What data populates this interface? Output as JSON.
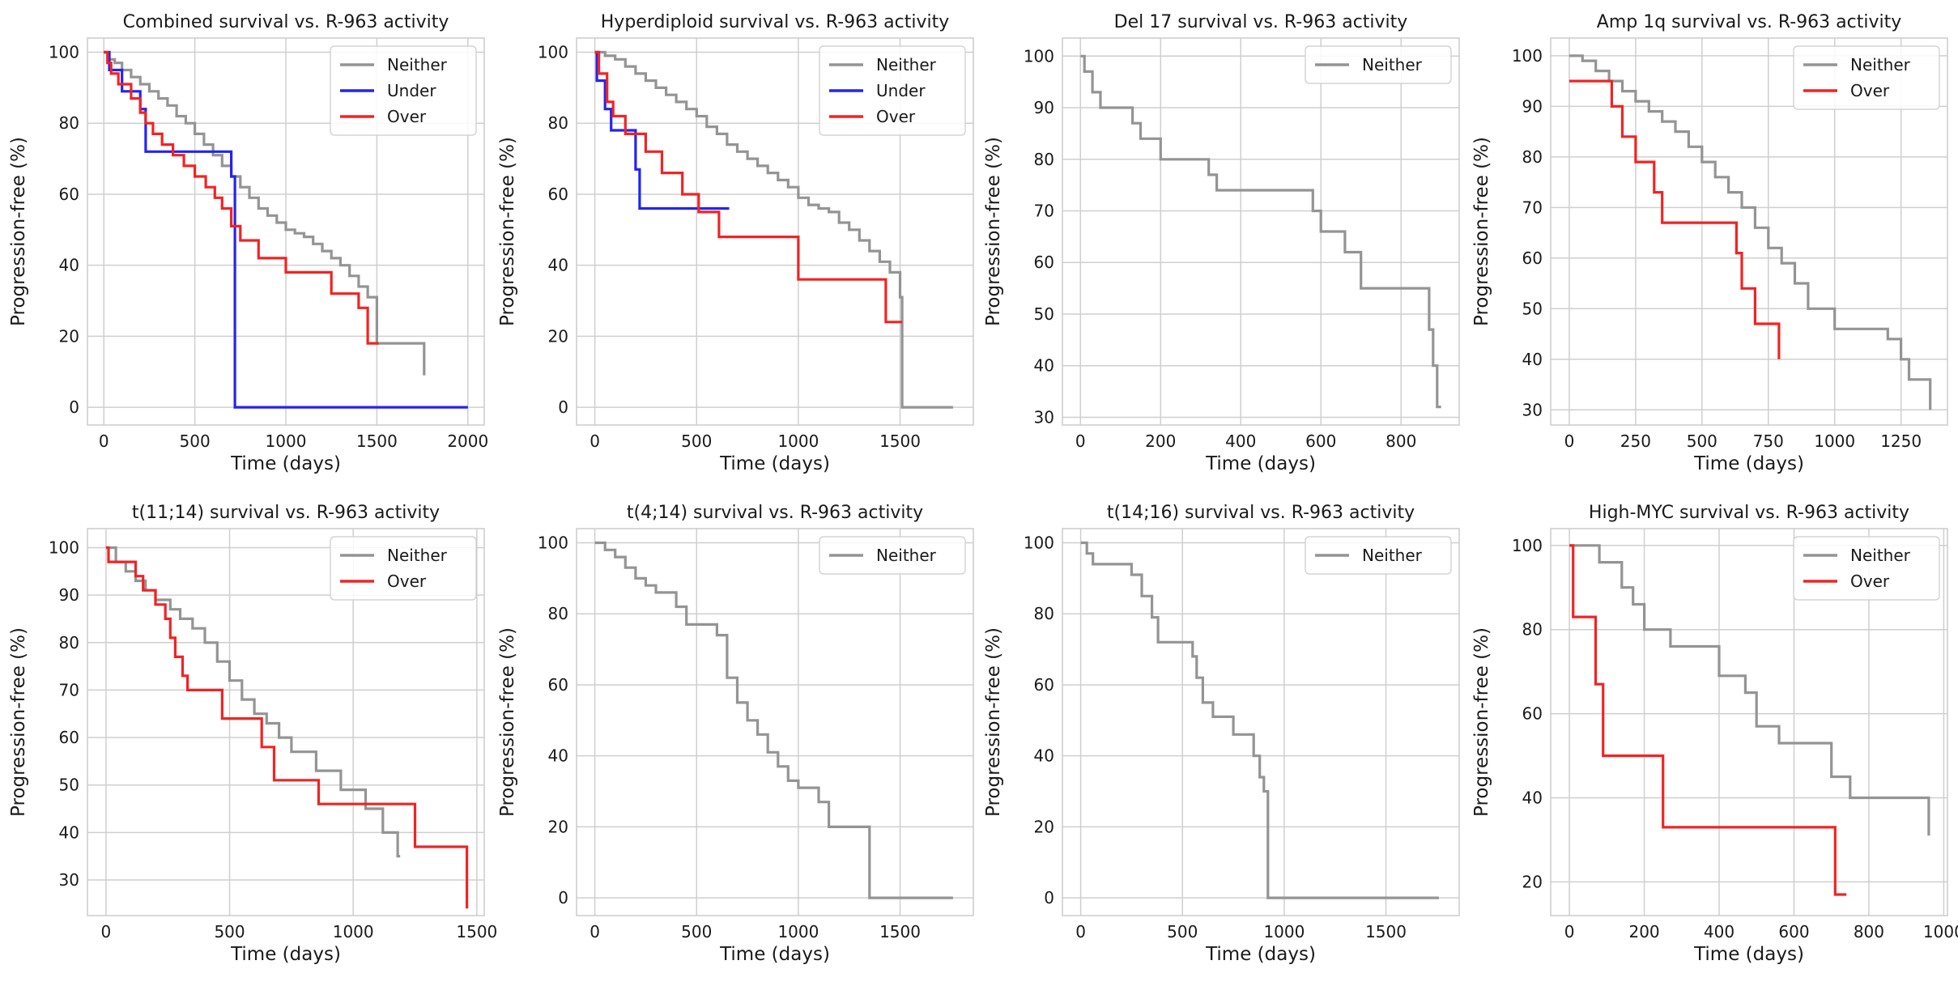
{
  "colors": {
    "Neither": "#949494",
    "Under": "#2424f0",
    "Over": "#f02424"
  },
  "chart_data": [
    {
      "type": "line",
      "title": "Combined survival vs. R-963 activity",
      "xlabel": "Time (days)",
      "ylabel": "Progression-free (%)",
      "xlim": [
        -90,
        2090
      ],
      "ylim": [
        -5,
        104
      ],
      "xticks": [
        0,
        500,
        1000,
        1500,
        2000
      ],
      "yticks": [
        0,
        20,
        40,
        60,
        80,
        100
      ],
      "legend": "top-right",
      "series": [
        {
          "name": "Neither",
          "x": [
            0,
            30,
            60,
            100,
            150,
            200,
            250,
            300,
            350,
            400,
            450,
            500,
            550,
            600,
            650,
            700,
            750,
            800,
            850,
            900,
            950,
            1000,
            1050,
            1100,
            1150,
            1200,
            1250,
            1300,
            1350,
            1400,
            1450,
            1500,
            1550,
            1750,
            1760
          ],
          "y": [
            100,
            98,
            97,
            95,
            93,
            91,
            89,
            87,
            85,
            82,
            80,
            77,
            74,
            71,
            68,
            65,
            62,
            59,
            56,
            54,
            52,
            50,
            49,
            48,
            46,
            44,
            42,
            40,
            37,
            34,
            31,
            18,
            18,
            18,
            9
          ]
        },
        {
          "name": "Under",
          "x": [
            0,
            30,
            100,
            200,
            230,
            700,
            720,
            2000
          ],
          "y": [
            100,
            95,
            89,
            84,
            72,
            65,
            0,
            0
          ]
        },
        {
          "name": "Over",
          "x": [
            0,
            20,
            40,
            80,
            150,
            200,
            230,
            270,
            320,
            380,
            440,
            500,
            560,
            610,
            650,
            700,
            750,
            850,
            1000,
            1250,
            1400,
            1450,
            1510
          ],
          "y": [
            100,
            97,
            94,
            91,
            87,
            83,
            80,
            77,
            74,
            71,
            68,
            65,
            62,
            59,
            56,
            51,
            47,
            42,
            38,
            32,
            28,
            18,
            18
          ]
        }
      ]
    },
    {
      "type": "line",
      "title": "Hyperdiploid survival vs. R-963 activity",
      "xlabel": "Time (days)",
      "ylabel": "Progression-free (%)",
      "xlim": [
        -90,
        1860
      ],
      "ylim": [
        -5,
        104
      ],
      "xticks": [
        0,
        500,
        1000,
        1500
      ],
      "yticks": [
        0,
        20,
        40,
        60,
        80,
        100
      ],
      "legend": "top-right",
      "series": [
        {
          "name": "Neither",
          "x": [
            0,
            50,
            100,
            150,
            200,
            250,
            300,
            350,
            400,
            450,
            500,
            550,
            600,
            650,
            700,
            750,
            800,
            850,
            900,
            950,
            1000,
            1050,
            1100,
            1150,
            1200,
            1250,
            1300,
            1350,
            1400,
            1450,
            1500,
            1510,
            1760
          ],
          "y": [
            100,
            99,
            98,
            96,
            94,
            92,
            90,
            88,
            86,
            84,
            82,
            79,
            77,
            74,
            72,
            70,
            68,
            66,
            64,
            62,
            59,
            57,
            56,
            55,
            52,
            50,
            47,
            44,
            41,
            38,
            31,
            0,
            0
          ]
        },
        {
          "name": "Under",
          "x": [
            0,
            10,
            50,
            80,
            200,
            220,
            240,
            660
          ],
          "y": [
            100,
            92,
            84,
            78,
            67,
            56,
            56,
            56
          ]
        },
        {
          "name": "Over",
          "x": [
            0,
            20,
            60,
            90,
            150,
            250,
            330,
            430,
            510,
            610,
            1000,
            1430,
            1510
          ],
          "y": [
            100,
            94,
            86,
            82,
            77,
            72,
            66,
            60,
            55,
            48,
            36,
            24,
            24
          ]
        }
      ]
    },
    {
      "type": "line",
      "title": "Del 17 survival vs. R-963 activity",
      "xlabel": "Time (days)",
      "ylabel": "Progression-free (%)",
      "xlim": [
        -45,
        945
      ],
      "ylim": [
        28.5,
        103.5
      ],
      "xticks": [
        0,
        200,
        400,
        600,
        800
      ],
      "yticks": [
        30,
        40,
        50,
        60,
        70,
        80,
        90,
        100
      ],
      "legend": "top-right",
      "series": [
        {
          "name": "Neither",
          "x": [
            0,
            10,
            30,
            50,
            130,
            150,
            200,
            320,
            340,
            580,
            600,
            660,
            700,
            870,
            880,
            890,
            900
          ],
          "y": [
            100,
            97,
            93,
            90,
            87,
            84,
            80,
            77,
            74,
            70,
            66,
            62,
            55,
            47,
            40,
            32,
            32
          ]
        }
      ]
    },
    {
      "type": "line",
      "title": "Amp 1q survival vs. R-963 activity",
      "xlabel": "Time (days)",
      "ylabel": "Progression-free (%)",
      "xlim": [
        -70,
        1425
      ],
      "ylim": [
        27,
        103.5
      ],
      "xticks": [
        0,
        250,
        500,
        750,
        1000,
        1250
      ],
      "yticks": [
        30,
        40,
        50,
        60,
        70,
        80,
        90,
        100
      ],
      "legend": "top-right",
      "series": [
        {
          "name": "Neither",
          "x": [
            0,
            50,
            100,
            150,
            200,
            250,
            300,
            350,
            400,
            450,
            500,
            550,
            600,
            650,
            700,
            750,
            800,
            850,
            900,
            1000,
            1200,
            1250,
            1280,
            1360
          ],
          "y": [
            100,
            99,
            97,
            95,
            93,
            91,
            89,
            87,
            85,
            82,
            79,
            76,
            73,
            70,
            66,
            62,
            59,
            55,
            50,
            46,
            44,
            40,
            36,
            30
          ]
        },
        {
          "name": "Over",
          "x": [
            0,
            160,
            200,
            250,
            320,
            350,
            630,
            650,
            700,
            790
          ],
          "y": [
            95,
            90,
            84,
            79,
            73,
            67,
            61,
            54,
            47,
            40
          ]
        }
      ]
    },
    {
      "type": "line",
      "title": "t(11;14) survival vs. R-963 activity",
      "xlabel": "Time (days)",
      "ylabel": "Progression-free (%)",
      "xlim": [
        -75,
        1530
      ],
      "ylim": [
        22.5,
        104
      ],
      "xticks": [
        0,
        500,
        1000,
        1500
      ],
      "yticks": [
        30,
        40,
        50,
        60,
        70,
        80,
        90,
        100
      ],
      "legend": "top-right",
      "series": [
        {
          "name": "Neither",
          "x": [
            0,
            40,
            80,
            120,
            160,
            200,
            260,
            300,
            350,
            400,
            450,
            500,
            550,
            600,
            650,
            700,
            750,
            850,
            950,
            1050,
            1120,
            1180,
            1190
          ],
          "y": [
            100,
            97,
            95,
            93,
            91,
            89,
            87,
            85,
            83,
            80,
            76,
            72,
            68,
            65,
            63,
            60,
            57,
            53,
            49,
            45,
            40,
            35,
            35
          ]
        },
        {
          "name": "Over",
          "x": [
            0,
            10,
            120,
            150,
            200,
            240,
            260,
            280,
            310,
            330,
            470,
            630,
            680,
            860,
            1250,
            1460
          ],
          "y": [
            100,
            97,
            94,
            91,
            88,
            85,
            81,
            77,
            73,
            70,
            64,
            58,
            51,
            46,
            37,
            24
          ]
        }
      ]
    },
    {
      "type": "line",
      "title": "t(4;14) survival vs. R-963 activity",
      "xlabel": "Time (days)",
      "ylabel": "Progression-free (%)",
      "xlim": [
        -90,
        1860
      ],
      "ylim": [
        -5,
        104
      ],
      "xticks": [
        0,
        500,
        1000,
        1500
      ],
      "yticks": [
        0,
        20,
        40,
        60,
        80,
        100
      ],
      "legend": "top-right",
      "series": [
        {
          "name": "Neither",
          "x": [
            0,
            50,
            100,
            150,
            200,
            250,
            300,
            400,
            450,
            600,
            650,
            700,
            750,
            800,
            850,
            900,
            950,
            1000,
            1100,
            1150,
            1350,
            1760
          ],
          "y": [
            100,
            98,
            96,
            93,
            90,
            88,
            86,
            82,
            77,
            74,
            62,
            55,
            50,
            46,
            41,
            37,
            33,
            31,
            27,
            20,
            0,
            0
          ]
        }
      ]
    },
    {
      "type": "line",
      "title": "t(14;16) survival vs. R-963 activity",
      "xlabel": "Time (days)",
      "ylabel": "Progression-free (%)",
      "xlim": [
        -90,
        1860
      ],
      "ylim": [
        -5,
        104
      ],
      "xticks": [
        0,
        500,
        1000,
        1500
      ],
      "yticks": [
        0,
        20,
        40,
        60,
        80,
        100
      ],
      "legend": "top-right",
      "series": [
        {
          "name": "Neither",
          "x": [
            0,
            30,
            60,
            250,
            300,
            350,
            380,
            550,
            570,
            600,
            650,
            750,
            850,
            880,
            900,
            920,
            1760
          ],
          "y": [
            100,
            97,
            94,
            91,
            85,
            79,
            72,
            68,
            62,
            55,
            51,
            46,
            40,
            34,
            30,
            0,
            0
          ]
        }
      ]
    },
    {
      "type": "line",
      "title": "High-MYC survival vs. R-963 activity",
      "xlabel": "Time (days)",
      "ylabel": "Progression-free (%)",
      "xlim": [
        -50,
        1010
      ],
      "ylim": [
        12,
        104
      ],
      "xticks": [
        0,
        200,
        400,
        600,
        800,
        1000
      ],
      "yticks": [
        20,
        40,
        60,
        80,
        100
      ],
      "legend": "top-right",
      "series": [
        {
          "name": "Neither",
          "x": [
            0,
            80,
            140,
            170,
            200,
            270,
            400,
            470,
            500,
            560,
            700,
            750,
            960
          ],
          "y": [
            100,
            96,
            90,
            86,
            80,
            76,
            69,
            65,
            57,
            53,
            45,
            40,
            31
          ]
        },
        {
          "name": "Over",
          "x": [
            0,
            10,
            70,
            90,
            110,
            250,
            260,
            710,
            740
          ],
          "y": [
            100,
            83,
            67,
            50,
            50,
            33,
            33,
            17,
            17
          ]
        }
      ]
    }
  ]
}
